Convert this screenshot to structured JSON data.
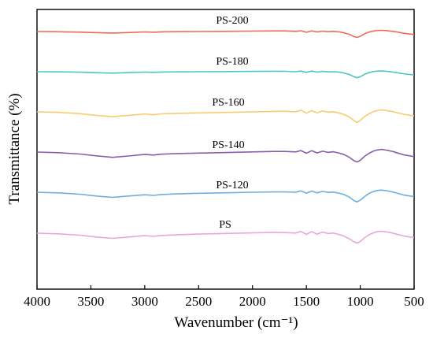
{
  "chart_data": {
    "type": "line",
    "title": "",
    "xlabel": "Wavenumber (cm⁻¹)",
    "ylabel": "Transmittance (%)",
    "xlim": [
      4000,
      500
    ],
    "x_reversed": true,
    "xticks": [
      4000,
      3500,
      3000,
      2500,
      2000,
      1500,
      1000,
      500
    ],
    "ytick_labels": false,
    "grid": false,
    "legend": "none (series labelled inline above each curve)",
    "x": [
      4000,
      3800,
      3600,
      3450,
      3300,
      3150,
      3000,
      2920,
      2850,
      2700,
      2500,
      2200,
      2000,
      1800,
      1700,
      1600,
      1550,
      1500,
      1450,
      1400,
      1350,
      1300,
      1250,
      1200,
      1150,
      1100,
      1060,
      1030,
      1000,
      960,
      920,
      880,
      840,
      800,
      760,
      700,
      650,
      600,
      550,
      500
    ],
    "series": [
      {
        "name": "PS-200",
        "color": "#ec6a5e",
        "values": [
          0.0,
          -0.06,
          -0.18,
          -0.34,
          -0.46,
          -0.3,
          -0.12,
          -0.22,
          -0.1,
          -0.05,
          0.0,
          0.06,
          0.12,
          0.2,
          0.18,
          0.05,
          0.25,
          -0.25,
          0.22,
          -0.15,
          0.12,
          -0.05,
          0.05,
          -0.1,
          -0.4,
          -0.85,
          -1.5,
          -1.75,
          -1.45,
          -0.7,
          -0.2,
          0.15,
          0.32,
          0.36,
          0.28,
          0.05,
          -0.2,
          -0.5,
          -0.75,
          -0.9
        ]
      },
      {
        "name": "PS-180",
        "color": "#4ec5c1",
        "values": [
          0.0,
          -0.05,
          -0.15,
          -0.3,
          -0.42,
          -0.28,
          -0.12,
          -0.2,
          -0.1,
          -0.05,
          0.0,
          0.05,
          0.1,
          0.15,
          0.12,
          0.0,
          0.2,
          -0.2,
          0.18,
          -0.12,
          0.1,
          -0.05,
          0.0,
          -0.1,
          -0.4,
          -0.85,
          -1.5,
          -1.8,
          -1.5,
          -0.8,
          -0.3,
          0.05,
          0.2,
          0.25,
          0.15,
          -0.1,
          -0.35,
          -0.6,
          -0.8,
          -0.95
        ]
      },
      {
        "name": "PS-160",
        "color": "#f8cc6e",
        "values": [
          0.0,
          -0.15,
          -0.55,
          -1.05,
          -1.45,
          -1.05,
          -0.65,
          -0.85,
          -0.6,
          -0.45,
          -0.3,
          -0.15,
          0.0,
          0.15,
          0.2,
          0.0,
          0.5,
          -0.4,
          0.4,
          -0.3,
          0.3,
          -0.1,
          0.05,
          -0.3,
          -0.8,
          -1.6,
          -2.6,
          -3.2,
          -2.6,
          -1.4,
          -0.6,
          0.05,
          0.45,
          0.6,
          0.45,
          0.1,
          -0.3,
          -0.7,
          -1.0,
          -1.2
        ]
      },
      {
        "name": "PS-140",
        "color": "#8560a8",
        "values": [
          0.0,
          -0.2,
          -0.6,
          -1.15,
          -1.6,
          -1.2,
          -0.7,
          -0.9,
          -0.65,
          -0.45,
          -0.3,
          -0.1,
          0.05,
          0.2,
          0.2,
          0.05,
          0.45,
          -0.35,
          0.4,
          -0.25,
          0.25,
          -0.1,
          0.1,
          -0.25,
          -0.75,
          -1.6,
          -2.6,
          -3.0,
          -2.5,
          -1.3,
          -0.4,
          0.25,
          0.65,
          0.8,
          0.6,
          0.2,
          -0.3,
          -0.8,
          -1.1,
          -1.4
        ]
      },
      {
        "name": "PS-120",
        "color": "#6caee0",
        "values": [
          0.0,
          -0.2,
          -0.6,
          -1.15,
          -1.55,
          -1.15,
          -0.75,
          -0.95,
          -0.7,
          -0.5,
          -0.3,
          -0.15,
          0.0,
          0.1,
          0.1,
          0.0,
          0.4,
          -0.3,
          0.35,
          -0.2,
          0.25,
          -0.05,
          0.05,
          -0.25,
          -0.7,
          -1.5,
          -2.5,
          -2.9,
          -2.4,
          -1.3,
          -0.4,
          0.2,
          0.55,
          0.65,
          0.5,
          0.1,
          -0.35,
          -0.8,
          -1.1,
          -1.3
        ]
      },
      {
        "name": "PS",
        "color": "#e6a9d6",
        "values": [
          0.0,
          -0.2,
          -0.6,
          -1.15,
          -1.55,
          -1.15,
          -0.75,
          -0.95,
          -0.7,
          -0.45,
          -0.25,
          -0.05,
          0.1,
          0.25,
          0.2,
          0.05,
          0.55,
          -0.35,
          0.5,
          -0.3,
          0.35,
          -0.1,
          0.05,
          -0.35,
          -0.9,
          -1.7,
          -2.6,
          -3.0,
          -2.5,
          -1.4,
          -0.5,
          0.1,
          0.5,
          0.6,
          0.45,
          0.05,
          -0.4,
          -0.8,
          -1.1,
          -1.3
        ]
      }
    ]
  }
}
